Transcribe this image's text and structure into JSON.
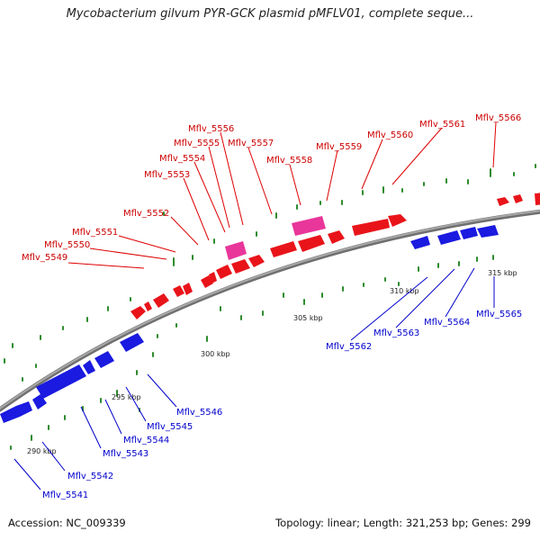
{
  "title": "Mycobacterium gilvum PYR-GCK plasmid pMFLV01, complete seque...",
  "footer": {
    "accession": "Accession: NC_009339",
    "summary": "Topology: linear; Length: 321,253 bp; Genes: 299"
  },
  "colors": {
    "forward_gene": "#e8141a",
    "forward_highlight": "#e8369a",
    "reverse_gene": "#1a1ae0",
    "backbone": "#8a8a8a",
    "gc_marks": "#2e8b2e",
    "forward_label": "#cc0000",
    "reverse_label": "#0000cc"
  },
  "scale_labels": [
    "290 kbp",
    "295 kbp",
    "300 kbp",
    "305 kbp",
    "310 kbp",
    "315 kbp"
  ],
  "forward_labels": [
    "Mflv_5549",
    "Mflv_5550",
    "Mflv_5551",
    "Mflv_5552",
    "Mflv_5553",
    "Mflv_5554",
    "Mflv_5555",
    "Mflv_5556",
    "Mflv_5557",
    "Mflv_5558",
    "Mflv_5559",
    "Mflv_5560",
    "Mflv_5561",
    "Mflv_5566"
  ],
  "reverse_labels": [
    "Mflv_5541",
    "Mflv_5542",
    "Mflv_5543",
    "Mflv_5544",
    "Mflv_5545",
    "Mflv_5546",
    "Mflv_5562",
    "Mflv_5563",
    "Mflv_5564",
    "Mflv_5565"
  ]
}
